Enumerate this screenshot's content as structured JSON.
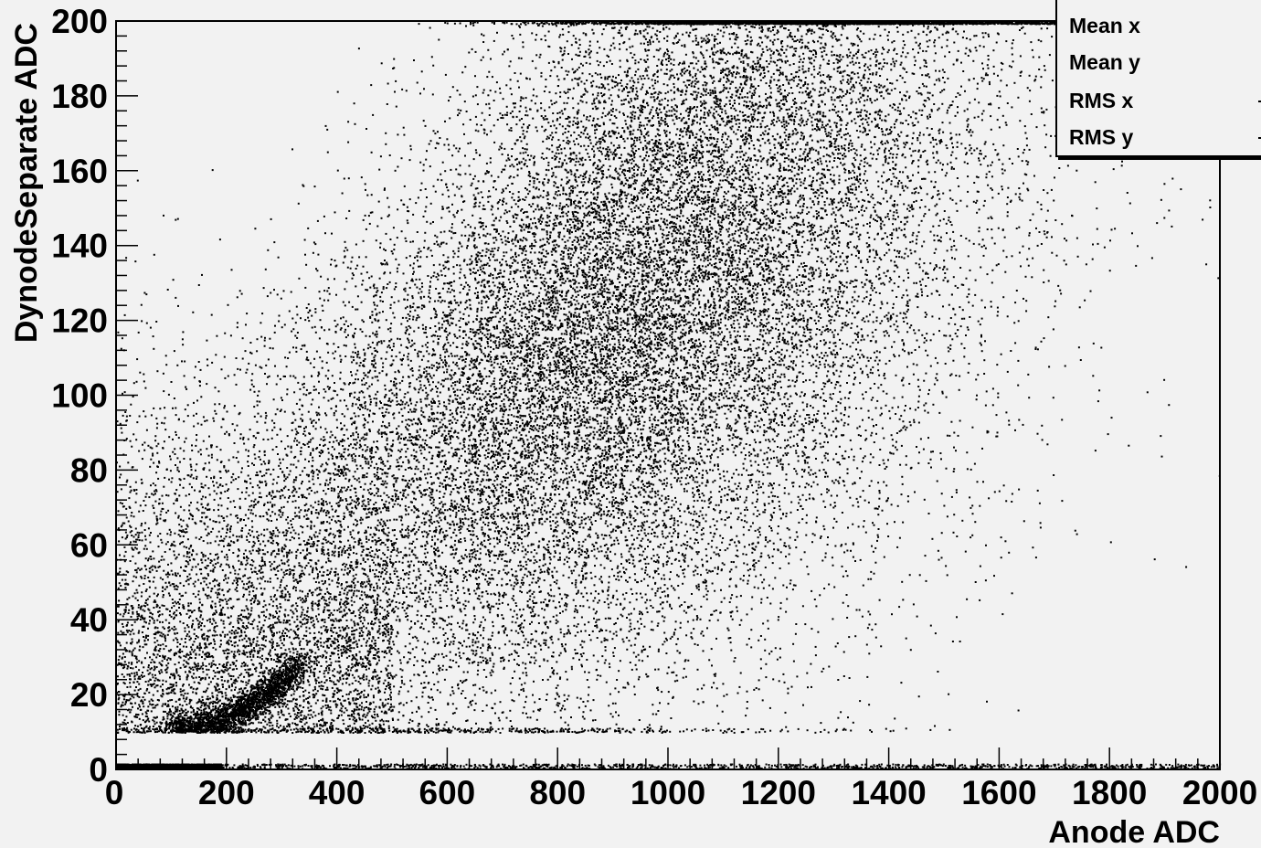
{
  "chart_data": {
    "type": "scatter",
    "title": "",
    "xlabel": "Anode ADC",
    "ylabel": "DynodeSeparate ADC",
    "xlim": [
      0,
      2000
    ],
    "ylim": [
      0,
      200
    ],
    "x_ticks": [
      "0",
      "200",
      "400",
      "600",
      "800",
      "1000",
      "1200",
      "1400",
      "1600",
      "1800",
      "2000"
    ],
    "y_ticks": [
      "0",
      "20",
      "40",
      "60",
      "80",
      "100",
      "120",
      "140",
      "160",
      "180",
      "200"
    ],
    "grid": false,
    "legend": "top-right stats box",
    "marker_color": "#000000",
    "distribution": {
      "main_cloud": {
        "center_x": 950,
        "center_y": 125,
        "spread_x": 380,
        "spread_y": 50,
        "y_floor": 10
      },
      "dense_band": {
        "x_from": 100,
        "x_to": 330,
        "y_from": 11,
        "y_to": 28
      },
      "zero_row": {
        "x_from": 0,
        "x_to": 2000,
        "y": 1,
        "dense_x_to": 190
      }
    }
  },
  "stats": {
    "rows": [
      {
        "label": "Mean x"
      },
      {
        "label": "Mean y"
      },
      {
        "label": "RMS x"
      },
      {
        "label": "RMS y"
      }
    ]
  }
}
